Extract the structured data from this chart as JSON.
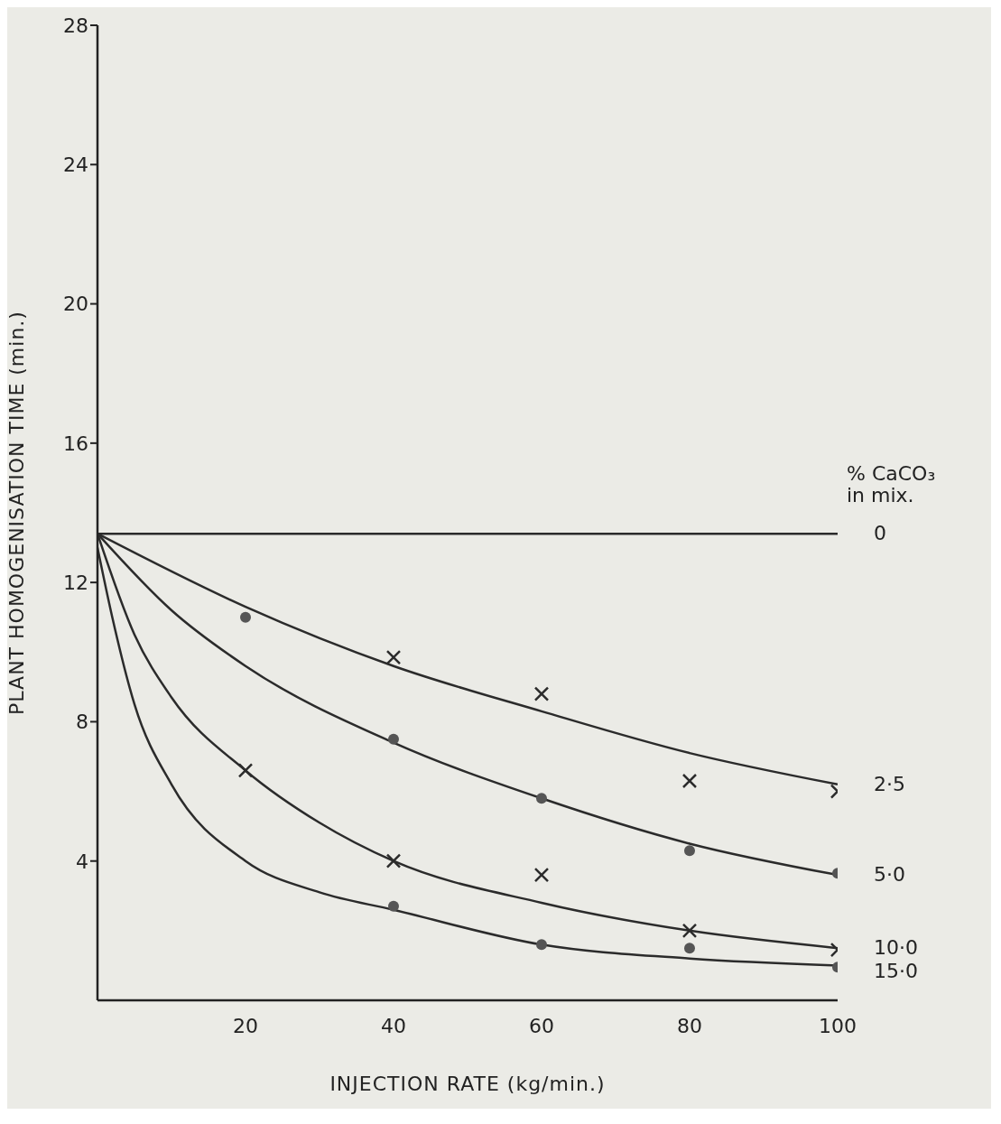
{
  "chart_data": {
    "type": "line",
    "xlabel": "INJECTION RATE   (kg/min.)",
    "ylabel": "PLANT HOMOGENISATION TIME   (min.)",
    "legend_title": "% CaCO₃ in mix.",
    "xlim": [
      0,
      100
    ],
    "xticks": [
      20,
      40,
      60,
      80,
      100
    ],
    "ylim": [
      0,
      28
    ],
    "yticks": [
      4,
      8,
      12,
      16,
      20,
      24,
      28
    ],
    "grid": false,
    "legend": false,
    "series": [
      {
        "name": "0",
        "marker": "none",
        "color": "#2b2b2b",
        "x": [
          0,
          100
        ],
        "values": [
          13.4,
          13.4
        ]
      },
      {
        "name": "2·5",
        "marker": "none",
        "color": "#2b2b2b",
        "x": [
          0,
          20,
          40,
          60,
          80,
          100
        ],
        "values": [
          13.4,
          11.3,
          9.6,
          8.3,
          7.1,
          6.2
        ]
      },
      {
        "name": "5·0",
        "marker": "none",
        "color": "#2b2b2b",
        "x": [
          0,
          10,
          20,
          40,
          60,
          80,
          100
        ],
        "values": [
          13.4,
          11.2,
          9.6,
          7.4,
          5.8,
          4.5,
          3.6
        ]
      },
      {
        "name": "10·0",
        "marker": "none",
        "color": "#2b2b2b",
        "x": [
          0,
          5,
          10,
          20,
          30,
          40,
          60,
          80,
          100
        ],
        "values": [
          13.4,
          10.5,
          8.7,
          6.6,
          5.1,
          4.0,
          2.8,
          2.0,
          1.5
        ]
      },
      {
        "name": "15·0",
        "marker": "none",
        "color": "#2b2b2b",
        "x": [
          0,
          2,
          5,
          10,
          20,
          30,
          40,
          60,
          80,
          100
        ],
        "values": [
          13.0,
          11.0,
          8.5,
          6.2,
          4.0,
          3.1,
          2.6,
          1.6,
          1.2,
          1.0
        ]
      },
      {
        "type": "scatter",
        "marker": "circle",
        "color": "#555555",
        "x": [
          20,
          40,
          60,
          80,
          100,
          40,
          60,
          80,
          100
        ],
        "values": [
          11.0,
          7.5,
          5.8,
          4.3,
          3.65,
          2.7,
          1.6,
          1.5,
          0.95
        ]
      },
      {
        "type": "scatter",
        "marker": "cross",
        "color": "#2b2b2b",
        "x": [
          40,
          60,
          80,
          100,
          20,
          40,
          60,
          80,
          100
        ],
        "values": [
          9.85,
          8.8,
          6.3,
          6.0,
          6.6,
          4.0,
          3.6,
          2.0,
          1.45
        ]
      }
    ]
  }
}
